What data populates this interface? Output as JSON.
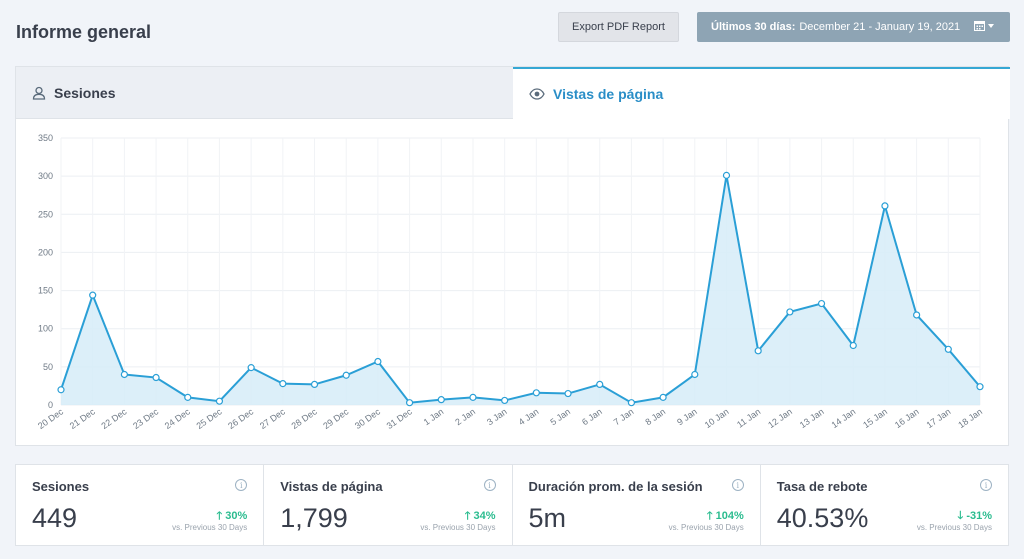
{
  "header": {
    "title": "Informe general",
    "export_label": "Export PDF Report",
    "date_prefix": "Últimos 30 días:",
    "date_range": "December 21 - January 19, 2021"
  },
  "tabs": {
    "sessions": "Sesiones",
    "pageviews": "Vistas de página"
  },
  "colors": {
    "accent": "#2a9fd6",
    "area_fill": "#d6ecf8",
    "positive": "#2bbc8f"
  },
  "chart_data": {
    "type": "area",
    "title": "",
    "xlabel": "",
    "ylabel": "",
    "ylim": [
      0,
      350
    ],
    "yticks": [
      0,
      50,
      100,
      150,
      200,
      250,
      300,
      350
    ],
    "grid": true,
    "categories": [
      "20 Dec",
      "21 Dec",
      "22 Dec",
      "23 Dec",
      "24 Dec",
      "25 Dec",
      "26 Dec",
      "27 Dec",
      "28 Dec",
      "29 Dec",
      "30 Dec",
      "31 Dec",
      "1 Jan",
      "2 Jan",
      "3 Jan",
      "4 Jan",
      "5 Jan",
      "6 Jan",
      "7 Jan",
      "8 Jan",
      "9 Jan",
      "10 Jan",
      "11 Jan",
      "12 Jan",
      "13 Jan",
      "14 Jan",
      "15 Jan",
      "16 Jan",
      "17 Jan",
      "18 Jan"
    ],
    "series": [
      {
        "values": [
          20,
          144,
          40,
          36,
          10,
          5,
          49,
          28,
          27,
          39,
          57,
          3,
          7,
          10,
          6,
          16,
          15,
          27,
          3,
          10,
          40,
          301,
          71,
          122,
          133,
          78,
          261,
          118,
          73,
          24
        ]
      }
    ]
  },
  "cards": [
    {
      "title": "Sesiones",
      "value": "449",
      "change": "30%",
      "direction": "up",
      "compare": "vs. Previous 30 Days"
    },
    {
      "title": "Vistas de página",
      "value": "1,799",
      "change": "34%",
      "direction": "up",
      "compare": "vs. Previous 30 Days"
    },
    {
      "title": "Duración prom. de la sesión",
      "value": "5m",
      "change": "104%",
      "direction": "up",
      "compare": "vs. Previous 30 Days"
    },
    {
      "title": "Tasa de rebote",
      "value": "40.53%",
      "change": "-31%",
      "direction": "down",
      "compare": "vs. Previous 30 Days"
    }
  ]
}
